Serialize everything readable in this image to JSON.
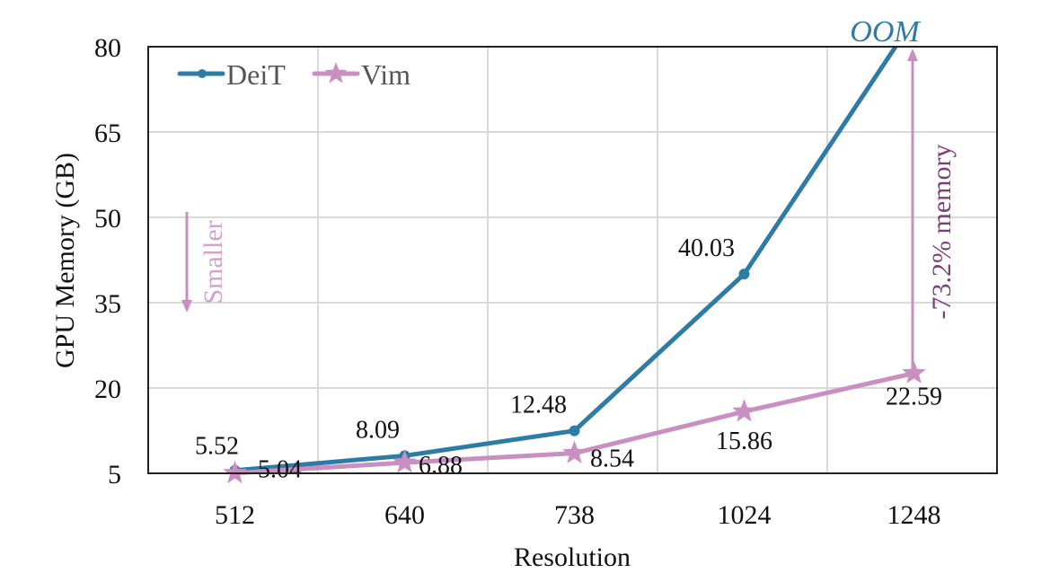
{
  "chart_data": {
    "type": "line",
    "title": "",
    "xlabel": "Resolution",
    "ylabel": "GPU Memory (GB)",
    "categories": [
      "512",
      "640",
      "738",
      "1024",
      "1248"
    ],
    "ylim": [
      5,
      80
    ],
    "yticks": [
      5,
      20,
      35,
      50,
      65,
      80
    ],
    "grid": true,
    "legend": "top-left",
    "series": [
      {
        "name": "DeiT",
        "values": [
          5.52,
          8.09,
          12.48,
          40.03,
          null
        ],
        "labels": [
          "5.52",
          "8.09",
          "12.48",
          "40.03",
          "OOM"
        ],
        "color": "#2e7ca6",
        "marker": "circle"
      },
      {
        "name": "Vim",
        "values": [
          5.04,
          6.88,
          8.54,
          15.86,
          22.59
        ],
        "labels": [
          "5.04",
          "6.88",
          "8.54",
          "15.86",
          "22.59"
        ],
        "color": "#c98fc0",
        "marker": "star"
      }
    ],
    "annotations": {
      "oom": "OOM",
      "reduction": "-73.2% memory",
      "smaller": "Smaller"
    }
  }
}
